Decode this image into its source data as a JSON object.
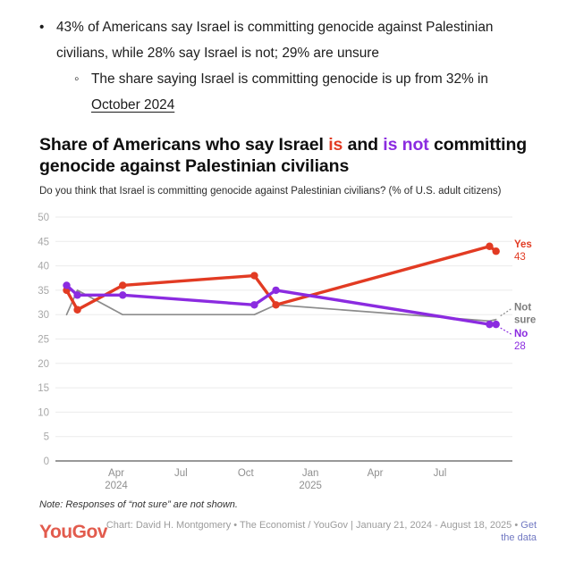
{
  "bullets": {
    "main": "43% of Americans say Israel is committing genocide against Palestinian civilians, while 28% say Israel is not; 29% are unsure",
    "sub_text": "The share saying Israel is committing genocide is up from 32% in ",
    "sub_link": "October 2024",
    "main_marker": "•",
    "sub_marker": "◦"
  },
  "title": {
    "part1": "Share of Americans who say Israel ",
    "is_word": "is",
    "and_word": " and ",
    "is_not_word": "is not",
    "part2": " committing genocide against Palestinian civilians"
  },
  "subtitle": "Do you think that Israel is committing genocide against Palestinian civilians? (% of U.S. adult citizens)",
  "chart_data": {
    "type": "line",
    "title": "Share of Americans who say Israel is and is not committing genocide against Palestinian civilians",
    "ylabel": "% of U.S. adult citizens",
    "ylim": [
      0,
      50
    ],
    "grid": true,
    "legend_position": "right-end-labels",
    "x_months_from_jan_2024": [
      0.7,
      1.2,
      3.3,
      9.4,
      10.4,
      20.3,
      20.6
    ],
    "series": [
      {
        "name": "Yes",
        "color": "#e23b23",
        "values": [
          35,
          31,
          36,
          38,
          32,
          44,
          43
        ],
        "end_label": "Yes",
        "end_value": "43"
      },
      {
        "name": "No",
        "color": "#8b2be0",
        "values": [
          36,
          34,
          34,
          32,
          35,
          28,
          28
        ],
        "end_label": "No",
        "end_value": "28"
      },
      {
        "name": "Not sure",
        "color": "#8c8c8c",
        "values": [
          30,
          35,
          30,
          30,
          32,
          28.7,
          29
        ],
        "end_label": "Not sure",
        "end_value": ""
      }
    ],
    "y_ticks": [
      0,
      5,
      10,
      15,
      20,
      25,
      30,
      35,
      40,
      45,
      50
    ],
    "x_ticks": [
      {
        "m": 3,
        "label": "Apr",
        "sub": "2024"
      },
      {
        "m": 6,
        "label": "Jul"
      },
      {
        "m": 9,
        "label": "Oct"
      },
      {
        "m": 12,
        "label": "Jan",
        "sub": "2025"
      },
      {
        "m": 15,
        "label": "Apr"
      },
      {
        "m": 18,
        "label": "Jul"
      }
    ]
  },
  "note": "Note: Responses of “not sure” are not shown.",
  "footer": {
    "logo": "YouGov",
    "caption": "Chart: David H. Montgomery • The Economist / YouGov | January 21, 2024 - August 18, 2025 • ",
    "link": "Get the data"
  }
}
